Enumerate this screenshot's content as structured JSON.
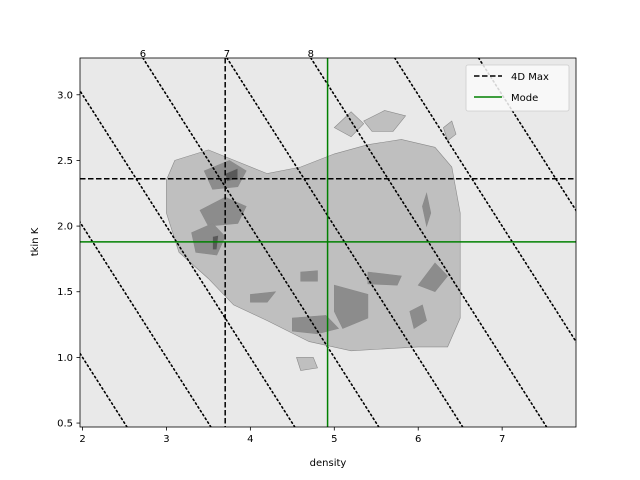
{
  "chart_data": {
    "type": "contour",
    "title": "",
    "xlabel": "density",
    "ylabel": "tkin K",
    "xlim": [
      1.97,
      7.88
    ],
    "ylim": [
      0.47,
      3.28
    ],
    "xticks": [
      2,
      3,
      4,
      5,
      6,
      7
    ],
    "yticks": [
      0.5,
      1.0,
      1.5,
      2.0,
      2.5,
      3.0
    ],
    "background": "#e9e9e9",
    "grid": false,
    "legend": {
      "placement": "top-right",
      "entries": [
        {
          "label": "4D Max",
          "color": "#000000",
          "style": "dashed"
        },
        {
          "label": "Mode",
          "color": "#008000",
          "style": "solid"
        }
      ]
    },
    "max_point": {
      "label": "4D Max",
      "x": 3.7,
      "y": 2.36
    },
    "mode_point": {
      "label": "Mode",
      "x": 4.92,
      "y": 1.88
    },
    "diagonals": [
      {
        "label": "",
        "value": 3
      },
      {
        "label": "",
        "value": 4
      },
      {
        "label": "",
        "value": 5
      },
      {
        "label": "6",
        "value": 6
      },
      {
        "label": "7",
        "value": 7
      },
      {
        "label": "8",
        "value": 8
      },
      {
        "label": "",
        "value": 9
      },
      {
        "label": "",
        "value": 10
      }
    ],
    "contour_levels": [
      {
        "level": 1,
        "color": "#bfbfbf"
      },
      {
        "level": 2,
        "color": "#8c8c8c"
      },
      {
        "level": 3,
        "color": "#595959"
      }
    ],
    "contour_regions": [
      {
        "level": 1,
        "points": [
          [
            3.1,
            2.5
          ],
          [
            3.5,
            2.58
          ],
          [
            4.2,
            2.4
          ],
          [
            4.6,
            2.45
          ],
          [
            5.0,
            2.55
          ],
          [
            5.4,
            2.62
          ],
          [
            5.8,
            2.66
          ],
          [
            6.2,
            2.6
          ],
          [
            6.4,
            2.45
          ],
          [
            6.5,
            2.1
          ],
          [
            6.5,
            1.7
          ],
          [
            6.5,
            1.3
          ],
          [
            6.35,
            1.08
          ],
          [
            6.0,
            1.08
          ],
          [
            5.2,
            1.05
          ],
          [
            4.7,
            1.12
          ],
          [
            4.2,
            1.28
          ],
          [
            3.8,
            1.4
          ],
          [
            3.5,
            1.6
          ],
          [
            3.15,
            1.8
          ],
          [
            3.0,
            2.1
          ],
          [
            3.0,
            2.35
          ]
        ]
      },
      {
        "level": 1,
        "points": [
          [
            5.0,
            2.75
          ],
          [
            5.2,
            2.87
          ],
          [
            5.35,
            2.78
          ],
          [
            5.2,
            2.68
          ]
        ]
      },
      {
        "level": 1,
        "points": [
          [
            5.35,
            2.8
          ],
          [
            5.6,
            2.88
          ],
          [
            5.85,
            2.84
          ],
          [
            5.7,
            2.72
          ],
          [
            5.45,
            2.72
          ]
        ]
      },
      {
        "level": 1,
        "points": [
          [
            6.3,
            2.75
          ],
          [
            6.4,
            2.8
          ],
          [
            6.45,
            2.7
          ],
          [
            6.35,
            2.65
          ]
        ]
      },
      {
        "level": 1,
        "points": [
          [
            4.55,
            1.0
          ],
          [
            4.75,
            1.0
          ],
          [
            4.8,
            0.92
          ],
          [
            4.6,
            0.9
          ]
        ]
      },
      {
        "level": 2,
        "points": [
          [
            3.45,
            2.42
          ],
          [
            3.75,
            2.5
          ],
          [
            3.95,
            2.42
          ],
          [
            3.85,
            2.3
          ],
          [
            3.55,
            2.28
          ]
        ]
      },
      {
        "level": 2,
        "points": [
          [
            3.4,
            2.12
          ],
          [
            3.7,
            2.22
          ],
          [
            3.95,
            2.15
          ],
          [
            3.85,
            2.02
          ],
          [
            3.5,
            2.0
          ]
        ]
      },
      {
        "level": 2,
        "points": [
          [
            3.3,
            1.95
          ],
          [
            3.55,
            2.02
          ],
          [
            3.7,
            1.92
          ],
          [
            3.6,
            1.78
          ],
          [
            3.35,
            1.8
          ]
        ]
      },
      {
        "level": 2,
        "points": [
          [
            4.0,
            1.48
          ],
          [
            4.3,
            1.5
          ],
          [
            4.2,
            1.42
          ],
          [
            4.0,
            1.42
          ]
        ]
      },
      {
        "level": 2,
        "points": [
          [
            4.5,
            1.3
          ],
          [
            4.9,
            1.32
          ],
          [
            5.05,
            1.22
          ],
          [
            4.8,
            1.18
          ],
          [
            4.5,
            1.2
          ]
        ]
      },
      {
        "level": 2,
        "points": [
          [
            4.6,
            1.65
          ],
          [
            4.8,
            1.66
          ],
          [
            4.8,
            1.58
          ],
          [
            4.6,
            1.58
          ]
        ]
      },
      {
        "level": 2,
        "points": [
          [
            5.0,
            1.55
          ],
          [
            5.4,
            1.48
          ],
          [
            5.4,
            1.3
          ],
          [
            5.1,
            1.22
          ],
          [
            5.0,
            1.35
          ]
        ]
      },
      {
        "level": 2,
        "points": [
          [
            5.4,
            1.65
          ],
          [
            5.8,
            1.62
          ],
          [
            5.75,
            1.55
          ],
          [
            5.4,
            1.56
          ]
        ]
      },
      {
        "level": 2,
        "points": [
          [
            5.9,
            1.35
          ],
          [
            6.05,
            1.4
          ],
          [
            6.1,
            1.28
          ],
          [
            5.95,
            1.22
          ]
        ]
      },
      {
        "level": 2,
        "points": [
          [
            6.0,
            1.55
          ],
          [
            6.2,
            1.72
          ],
          [
            6.35,
            1.62
          ],
          [
            6.2,
            1.5
          ]
        ]
      },
      {
        "level": 2,
        "points": [
          [
            6.05,
            2.15
          ],
          [
            6.1,
            2.25
          ],
          [
            6.15,
            2.1
          ],
          [
            6.1,
            2.0
          ]
        ]
      },
      {
        "level": 3,
        "points": [
          [
            3.55,
            1.92
          ],
          [
            3.62,
            1.93
          ],
          [
            3.6,
            1.82
          ],
          [
            3.55,
            1.82
          ]
        ]
      },
      {
        "level": 3,
        "points": [
          [
            3.7,
            2.4
          ],
          [
            3.85,
            2.44
          ],
          [
            3.85,
            2.36
          ],
          [
            3.72,
            2.34
          ]
        ]
      }
    ]
  }
}
